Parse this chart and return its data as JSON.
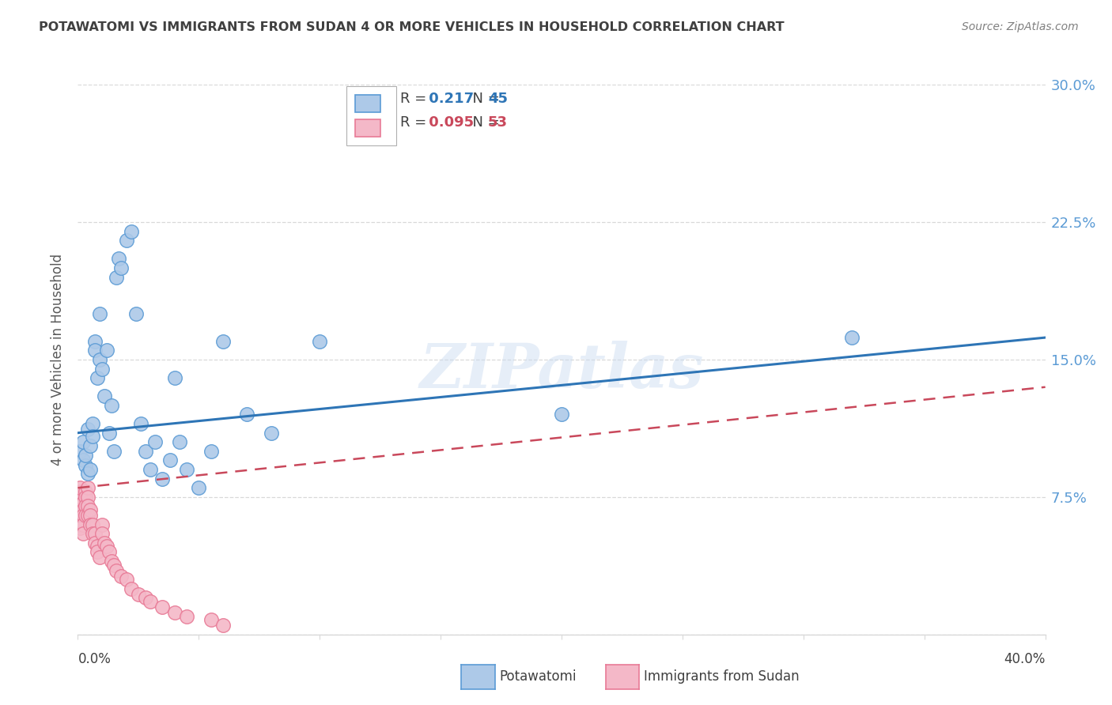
{
  "title": "POTAWATOMI VS IMMIGRANTS FROM SUDAN 4 OR MORE VEHICLES IN HOUSEHOLD CORRELATION CHART",
  "source": "Source: ZipAtlas.com",
  "ylabel": "4 or more Vehicles in Household",
  "xmin": 0.0,
  "xmax": 0.4,
  "ymin": 0.0,
  "ymax": 0.3,
  "yticks": [
    0.0,
    0.075,
    0.15,
    0.225,
    0.3
  ],
  "ytick_labels": [
    "",
    "7.5%",
    "15.0%",
    "22.5%",
    "30.0%"
  ],
  "series1_name": "Potawatomi",
  "series1_color": "#adc9e8",
  "series1_edge_color": "#5b9bd5",
  "series1_line_color": "#2e75b6",
  "series1_R": "0.217",
  "series1_N": "45",
  "series2_name": "Immigrants from Sudan",
  "series2_color": "#f4b8c8",
  "series2_edge_color": "#e87a96",
  "series2_line_color": "#c9485b",
  "series2_R": "0.095",
  "series2_N": "53",
  "watermark": "ZIPatlas",
  "potawatomi_x": [
    0.001,
    0.002,
    0.002,
    0.003,
    0.003,
    0.004,
    0.004,
    0.005,
    0.005,
    0.006,
    0.006,
    0.007,
    0.007,
    0.008,
    0.009,
    0.009,
    0.01,
    0.011,
    0.012,
    0.013,
    0.014,
    0.015,
    0.016,
    0.017,
    0.018,
    0.02,
    0.022,
    0.024,
    0.026,
    0.028,
    0.03,
    0.032,
    0.035,
    0.038,
    0.04,
    0.042,
    0.045,
    0.05,
    0.055,
    0.06,
    0.07,
    0.08,
    0.1,
    0.2,
    0.32
  ],
  "potawatomi_y": [
    0.1,
    0.095,
    0.105,
    0.092,
    0.098,
    0.088,
    0.112,
    0.09,
    0.103,
    0.115,
    0.108,
    0.16,
    0.155,
    0.14,
    0.175,
    0.15,
    0.145,
    0.13,
    0.155,
    0.11,
    0.125,
    0.1,
    0.195,
    0.205,
    0.2,
    0.215,
    0.22,
    0.175,
    0.115,
    0.1,
    0.09,
    0.105,
    0.085,
    0.095,
    0.14,
    0.105,
    0.09,
    0.08,
    0.1,
    0.16,
    0.12,
    0.11,
    0.16,
    0.12,
    0.162
  ],
  "sudan_x": [
    0.0,
    0.0,
    0.0,
    0.0,
    0.0,
    0.001,
    0.001,
    0.001,
    0.001,
    0.001,
    0.001,
    0.002,
    0.002,
    0.002,
    0.002,
    0.002,
    0.003,
    0.003,
    0.003,
    0.003,
    0.004,
    0.004,
    0.004,
    0.004,
    0.005,
    0.005,
    0.005,
    0.006,
    0.006,
    0.007,
    0.007,
    0.008,
    0.008,
    0.009,
    0.01,
    0.01,
    0.011,
    0.012,
    0.013,
    0.014,
    0.015,
    0.016,
    0.018,
    0.02,
    0.022,
    0.025,
    0.028,
    0.03,
    0.035,
    0.04,
    0.045,
    0.055,
    0.06
  ],
  "sudan_y": [
    0.068,
    0.07,
    0.072,
    0.065,
    0.06,
    0.075,
    0.078,
    0.08,
    0.068,
    0.062,
    0.058,
    0.072,
    0.068,
    0.065,
    0.06,
    0.055,
    0.078,
    0.075,
    0.07,
    0.065,
    0.08,
    0.075,
    0.07,
    0.065,
    0.068,
    0.065,
    0.06,
    0.06,
    0.055,
    0.055,
    0.05,
    0.048,
    0.045,
    0.042,
    0.06,
    0.055,
    0.05,
    0.048,
    0.045,
    0.04,
    0.038,
    0.035,
    0.032,
    0.03,
    0.025,
    0.022,
    0.02,
    0.018,
    0.015,
    0.012,
    0.01,
    0.008,
    0.005
  ],
  "background_color": "#ffffff",
  "grid_color": "#d9d9d9",
  "title_color": "#404040",
  "axis_tick_color": "#5b9bd5",
  "ylabel_color": "#595959"
}
